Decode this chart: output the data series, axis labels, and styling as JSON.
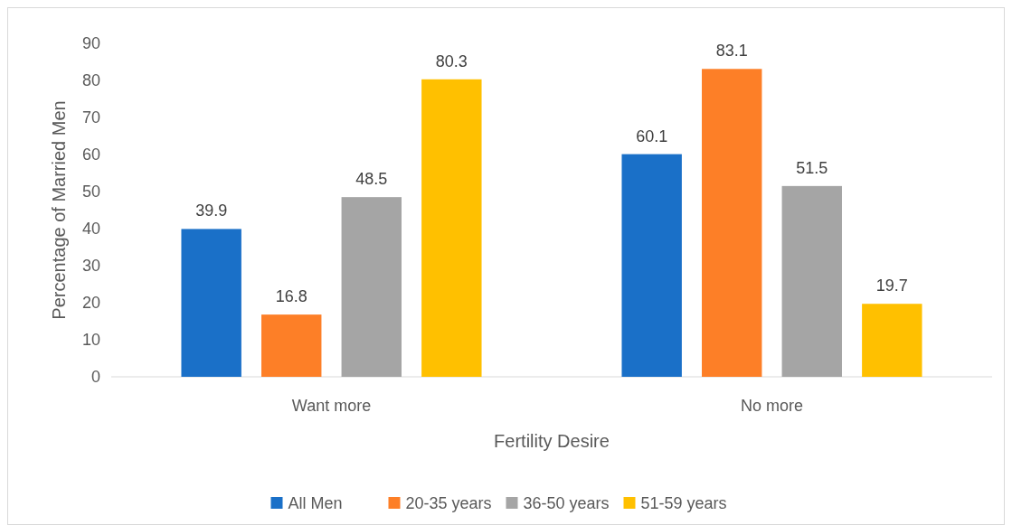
{
  "chart_data": {
    "type": "bar",
    "xlabel": "Fertility Desire",
    "ylabel": "Percentage of Married Men",
    "categories": [
      "Want more",
      "No more"
    ],
    "series": [
      {
        "name": "All Men",
        "color": "#1a70c8",
        "values": [
          39.9,
          60.1
        ]
      },
      {
        "name": "20-35 years",
        "color": "#fd7f27",
        "values": [
          16.8,
          83.1
        ]
      },
      {
        "name": "36-50 years",
        "color": "#a5a5a5",
        "values": [
          48.5,
          51.5
        ]
      },
      {
        "name": "51-59 years",
        "color": "#ffc000",
        "values": [
          80.3,
          19.7
        ]
      }
    ],
    "ylim": [
      0,
      90
    ],
    "yticks": [
      0,
      10,
      20,
      30,
      40,
      50,
      60,
      70,
      80,
      90
    ],
    "grid": false,
    "data_labels": true,
    "legend": "bottom"
  }
}
